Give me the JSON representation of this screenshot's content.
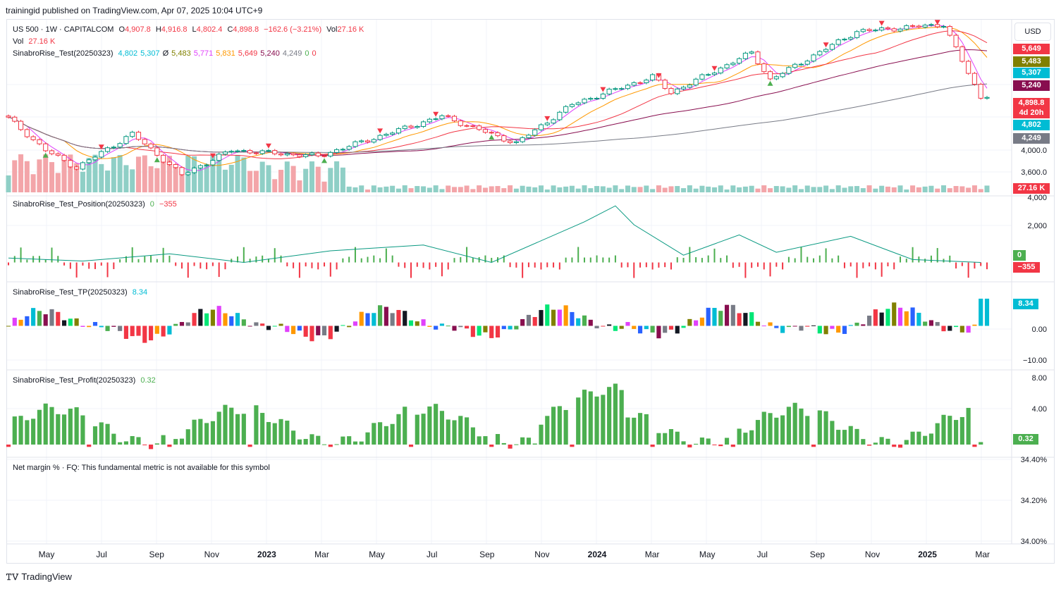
{
  "header": {
    "publisher": "trainingid published on TradingView.com, Apr 07, 2025 10:04 UTC+9"
  },
  "brand": {
    "footer": "TradingView"
  },
  "currency_button": "USD",
  "main_legend": {
    "symbol": "US 500 · 1W · CAPITALCOM",
    "o_label": "O",
    "o": "4,907.8",
    "h_label": "H",
    "h": "4,916.8",
    "l_label": "L",
    "l": "4,802.4",
    "c_label": "C",
    "c": "4,898.8",
    "change": "−162.6 (−3.21%)",
    "vol_label": "Vol",
    "vol": "27.16 K",
    "vol_row_label": "Vol",
    "vol_row_value": "27.16 K",
    "indicator": "SinabroRise_Test(20250323)",
    "indicator_values": [
      "4,802",
      "5,307",
      "Ø",
      "5,483",
      "5,771",
      "5,831",
      "5,649",
      "5,240",
      "4,249",
      "0",
      "0"
    ],
    "indicator_colors": [
      "#00bcd4",
      "#00bcd4",
      "#131722",
      "#808000",
      "#e040fb",
      "#ff9800",
      "#f23645",
      "#880e4f",
      "#787b86",
      "#4caf50",
      "#f23645"
    ]
  },
  "panes": {
    "position": {
      "title": "SinabroRise_Test_Position(20250323)",
      "v1": "0",
      "v2": "−355"
    },
    "tp": {
      "title": "SinabroRise_Test_TP(20250323)",
      "v1": "8.34"
    },
    "profit": {
      "title": "SinabroRise_Test_Profit(20250323)",
      "v1": "0.32"
    },
    "net_margin": {
      "title": "Net margin % · FQ: This fundamental metric is not available for this symbol"
    }
  },
  "price_tags": [
    {
      "text": "5,649",
      "color": "#f23645"
    },
    {
      "text": "5,483",
      "color": "#808000"
    },
    {
      "text": "5,307",
      "color": "#00bcd4"
    },
    {
      "text": "5,240",
      "color": "#880e4f"
    },
    {
      "text": "4,898.8",
      "color": "#f23645"
    },
    {
      "text": "4d 20h",
      "color": "#f23645"
    },
    {
      "text": "4,802",
      "color": "#00bcd4"
    },
    {
      "text": "4,249",
      "color": "#787b86"
    },
    {
      "text": "27.16 K",
      "color": "#f23645"
    }
  ],
  "pane_tags": [
    {
      "text": "0",
      "color": "#4caf50"
    },
    {
      "text": "−355",
      "color": "#f23645"
    },
    {
      "text": "8.34",
      "color": "#00bcd4"
    },
    {
      "text": "0.32",
      "color": "#4caf50"
    }
  ],
  "axes": {
    "price_ticks": [
      "4,000.0",
      "3,600.0"
    ],
    "position_ticks": [
      "4,000",
      "2,000"
    ],
    "tp_ticks": [
      "0.00",
      "−10.00"
    ],
    "profit_ticks": [
      "8.00",
      "4.00"
    ],
    "net_margin_ticks": [
      "34.40%",
      "34.20%",
      "34.00%"
    ],
    "time_labels": [
      {
        "text": "May",
        "bold": false
      },
      {
        "text": "Jul",
        "bold": false
      },
      {
        "text": "Sep",
        "bold": false
      },
      {
        "text": "Nov",
        "bold": false
      },
      {
        "text": "2023",
        "bold": true
      },
      {
        "text": "Mar",
        "bold": false
      },
      {
        "text": "May",
        "bold": false
      },
      {
        "text": "Jul",
        "bold": false
      },
      {
        "text": "Sep",
        "bold": false
      },
      {
        "text": "Nov",
        "bold": false
      },
      {
        "text": "2024",
        "bold": true
      },
      {
        "text": "Mar",
        "bold": false
      },
      {
        "text": "May",
        "bold": false
      },
      {
        "text": "Jul",
        "bold": false
      },
      {
        "text": "Sep",
        "bold": false
      },
      {
        "text": "Nov",
        "bold": false
      },
      {
        "text": "2025",
        "bold": true
      },
      {
        "text": "Mar",
        "bold": false
      }
    ]
  },
  "chart_data": {
    "type": "line",
    "x_start": "2022-03-28",
    "x_end": "2025-04-07",
    "x_label": "Weekly",
    "price": {
      "ylim": [
        3500,
        6100
      ],
      "key_points": [
        [
          "2022-03-28",
          4545
        ],
        [
          "2022-05-09",
          4000
        ],
        [
          "2022-06-13",
          3700
        ],
        [
          "2022-08-15",
          4280
        ],
        [
          "2022-10-10",
          3580
        ],
        [
          "2022-12-05",
          4000
        ],
        [
          "2023-03-13",
          3900
        ],
        [
          "2023-07-31",
          4580
        ],
        [
          "2023-10-23",
          4120
        ],
        [
          "2023-12-25",
          4780
        ],
        [
          "2024-03-25",
          5250
        ],
        [
          "2024-04-15",
          4980
        ],
        [
          "2024-07-15",
          5660
        ],
        [
          "2024-08-05",
          5200
        ],
        [
          "2024-11-11",
          6020
        ],
        [
          "2025-02-17",
          6140
        ],
        [
          "2025-03-10",
          5520
        ],
        [
          "2025-03-31",
          4898.8
        ]
      ],
      "series_colors": {
        "price": "#00bcd4",
        "ma_short": "#880e4f",
        "ma_mid": "#ff9800",
        "ma_long": "#f23645",
        "ma_200": "#787b86",
        "ma_fast": "#e040fb"
      },
      "markers": "sell triangles above highs, buy triangles below lows"
    },
    "volume": {
      "last": "27.16 K"
    },
    "position": {
      "ylim": [
        -800,
        4200
      ],
      "line_points": [
        [
          "2022-03-28",
          300
        ],
        [
          "2022-06-20",
          100
        ],
        [
          "2022-09-26",
          600
        ],
        [
          "2022-12-19",
          0
        ],
        [
          "2023-03-27",
          800
        ],
        [
          "2023-07-10",
          1200
        ],
        [
          "2023-09-25",
          0
        ],
        [
          "2024-01-08",
          2800
        ],
        [
          "2024-02-12",
          3900
        ],
        [
          "2024-03-04",
          2600
        ],
        [
          "2024-04-29",
          500
        ],
        [
          "2024-07-01",
          1900
        ],
        [
          "2024-08-12",
          700
        ],
        [
          "2024-11-04",
          1800
        ],
        [
          "2025-01-13",
          200
        ],
        [
          "2025-03-31",
          0
        ]
      ]
    },
    "tp": {
      "ylim": [
        -12,
        12
      ],
      "last": 8.34
    },
    "profit": {
      "ylim": [
        -1,
        9
      ],
      "last": 0.32
    },
    "net_margin": {
      "ylim": [
        "33.95%",
        "34.45%"
      ],
      "available": false
    }
  }
}
